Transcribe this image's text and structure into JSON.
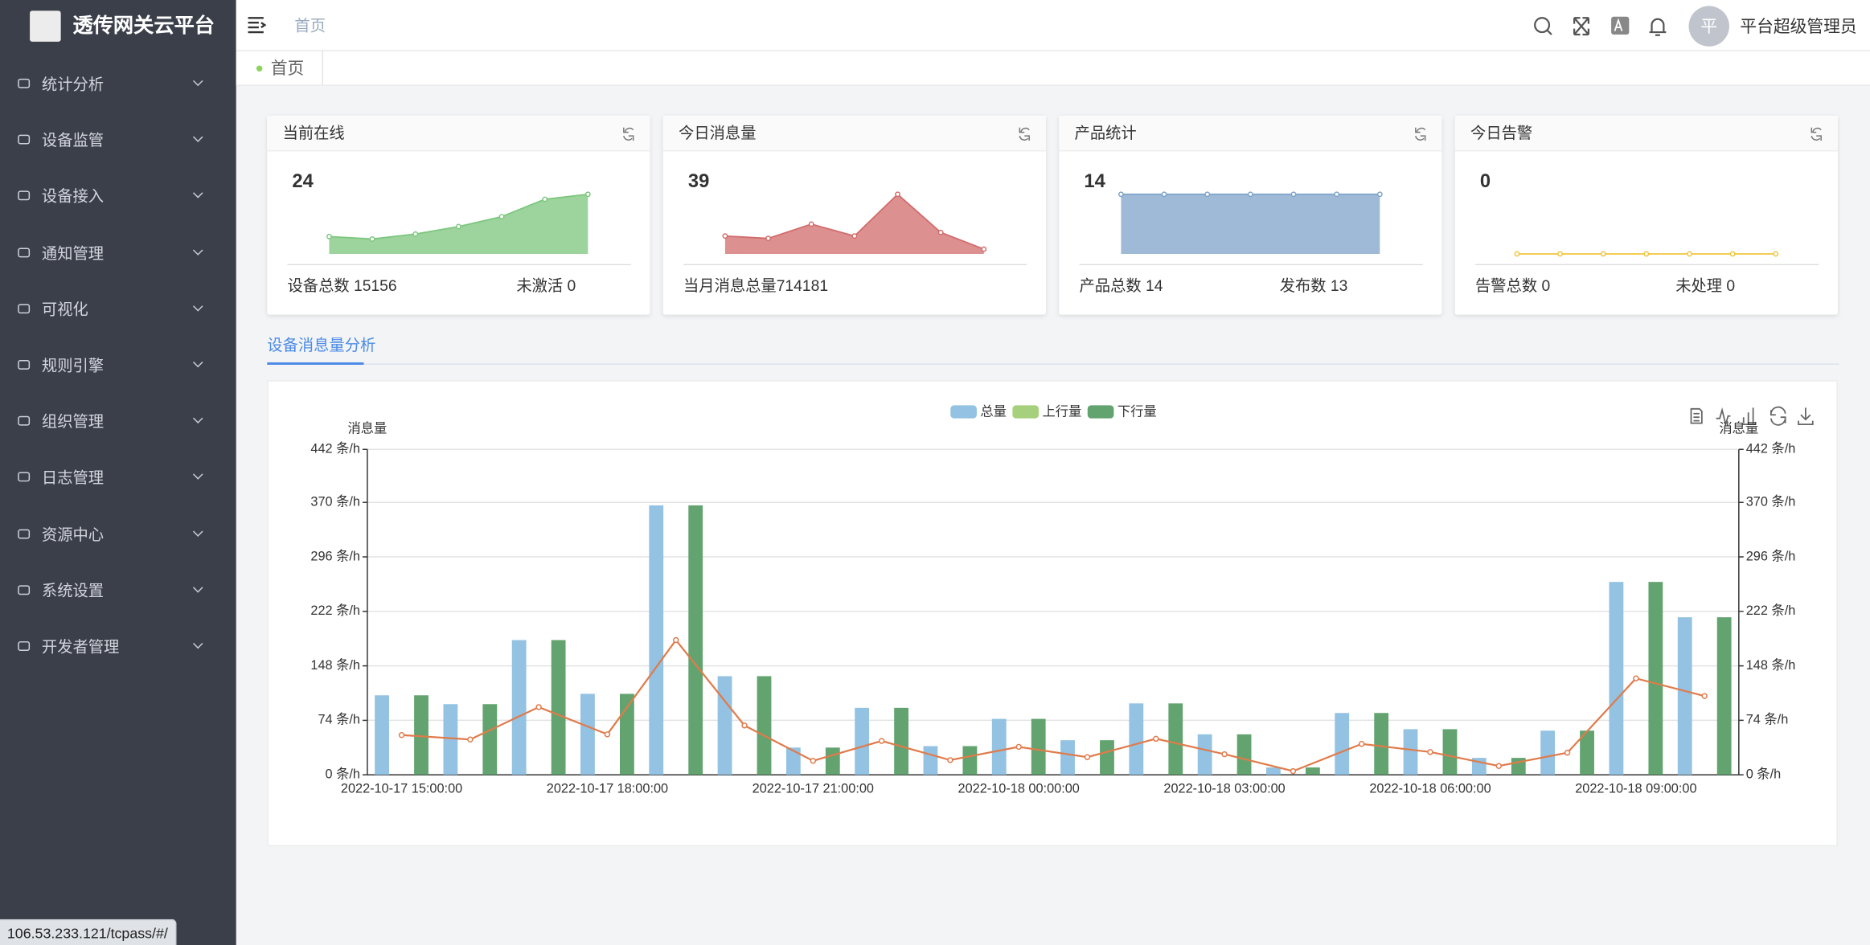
{
  "sidebar": {
    "title": "透传网关云平台",
    "menu": [
      "统计分析",
      "设备监管",
      "设备接入",
      "通知管理",
      "可视化",
      "规则引擎",
      "组织管理",
      "日志管理",
      "资源中心",
      "系统设置",
      "开发者管理"
    ]
  },
  "header": {
    "breadcrumb": "首页",
    "avatar": "平",
    "user": "平台超级管理员"
  },
  "tabs": [
    "首页"
  ],
  "cards": [
    {
      "title": "当前在线",
      "value": 24,
      "stats": [
        "设备总数 15156",
        "未激活 0"
      ]
    },
    {
      "title": "今日消息量",
      "value": 39,
      "stats": [
        "当月消息总量714181"
      ]
    },
    {
      "title": "产品统计",
      "value": 14,
      "stats": [
        "产品总数 14",
        "发布数 13"
      ]
    },
    {
      "title": "今日告警",
      "value": 0,
      "stats": [
        "告警总数 0",
        "未处理 0"
      ]
    }
  ],
  "section_tab": "设备消息量分析",
  "status_url": "106.53.233.121/tcpass/#/",
  "chart_data": [
    {
      "type": "area",
      "color": "#7cc67d",
      "values": [
        7,
        6,
        8,
        11,
        15,
        22,
        24
      ]
    },
    {
      "type": "area",
      "color": "#d26b6b",
      "values": [
        15,
        13,
        25,
        15,
        50,
        18,
        4
      ]
    },
    {
      "type": "area",
      "color": "#7ea3c9",
      "values": [
        14,
        14,
        14,
        14,
        14,
        14,
        14
      ]
    },
    {
      "type": "area",
      "color": "#f0c43c",
      "values": [
        0,
        0,
        0,
        0,
        0,
        0,
        0
      ]
    },
    {
      "type": "bar",
      "legend_position": "top",
      "grid": true,
      "y_label": "消息量",
      "y2_label": "消息量",
      "categories": [
        "2022-10-17 15:00:00",
        null,
        null,
        "2022-10-17 18:00:00",
        null,
        null,
        "2022-10-17 21:00:00",
        null,
        null,
        "2022-10-18 00:00:00",
        null,
        null,
        "2022-10-18 03:00:00",
        null,
        null,
        "2022-10-18 06:00:00",
        null,
        null,
        "2022-10-18 09:00:00",
        null
      ],
      "series": [
        {
          "name": "总量",
          "color": "#93c2e2",
          "values": [
            108,
            96,
            183,
            110,
            366,
            134,
            37,
            91,
            39,
            76,
            47,
            97,
            55,
            10,
            84,
            62,
            23,
            60,
            262,
            214
          ]
        },
        {
          "name": "上行量",
          "color": "#a6d07b",
          "values": [
            0,
            0,
            0,
            0,
            0,
            0,
            0,
            0,
            0,
            0,
            0,
            0,
            0,
            0,
            0,
            0,
            0,
            0,
            0,
            0
          ]
        },
        {
          "name": "下行量",
          "color": "#62a36f",
          "values": [
            108,
            96,
            183,
            110,
            366,
            134,
            37,
            91,
            39,
            76,
            47,
            97,
            55,
            10,
            84,
            62,
            23,
            60,
            262,
            214
          ]
        },
        {
          "type": "line",
          "axis": "y2",
          "color": "#e07b4b",
          "values": [
            54,
            48,
            92,
            55,
            183,
            67,
            19,
            46,
            20,
            38,
            24,
            49,
            28,
            5,
            42,
            31,
            12,
            30,
            131,
            107
          ]
        }
      ],
      "ylim": [
        0,
        442
      ],
      "yticks": [
        {
          "value": 0,
          "label": "0 条/h"
        },
        {
          "value": 74,
          "label": "74 条/h"
        },
        {
          "value": 148,
          "label": "148 条/h"
        },
        {
          "value": 222,
          "label": "222 条/h"
        },
        {
          "value": 296,
          "label": "296 条/h"
        },
        {
          "value": 370,
          "label": "370 条/h"
        },
        {
          "value": 442,
          "label": "442 条/h"
        }
      ],
      "y2lim": [
        0,
        442
      ],
      "y2ticks": [
        {
          "value": 0,
          "label": "0 条/h"
        },
        {
          "value": 74,
          "label": "74 条/h"
        },
        {
          "value": 148,
          "label": "148 条/h"
        },
        {
          "value": 222,
          "label": "222 条/h"
        },
        {
          "value": 296,
          "label": "296 条/h"
        },
        {
          "value": 370,
          "label": "370 条/h"
        },
        {
          "value": 442,
          "label": "442 条/h"
        }
      ]
    }
  ]
}
